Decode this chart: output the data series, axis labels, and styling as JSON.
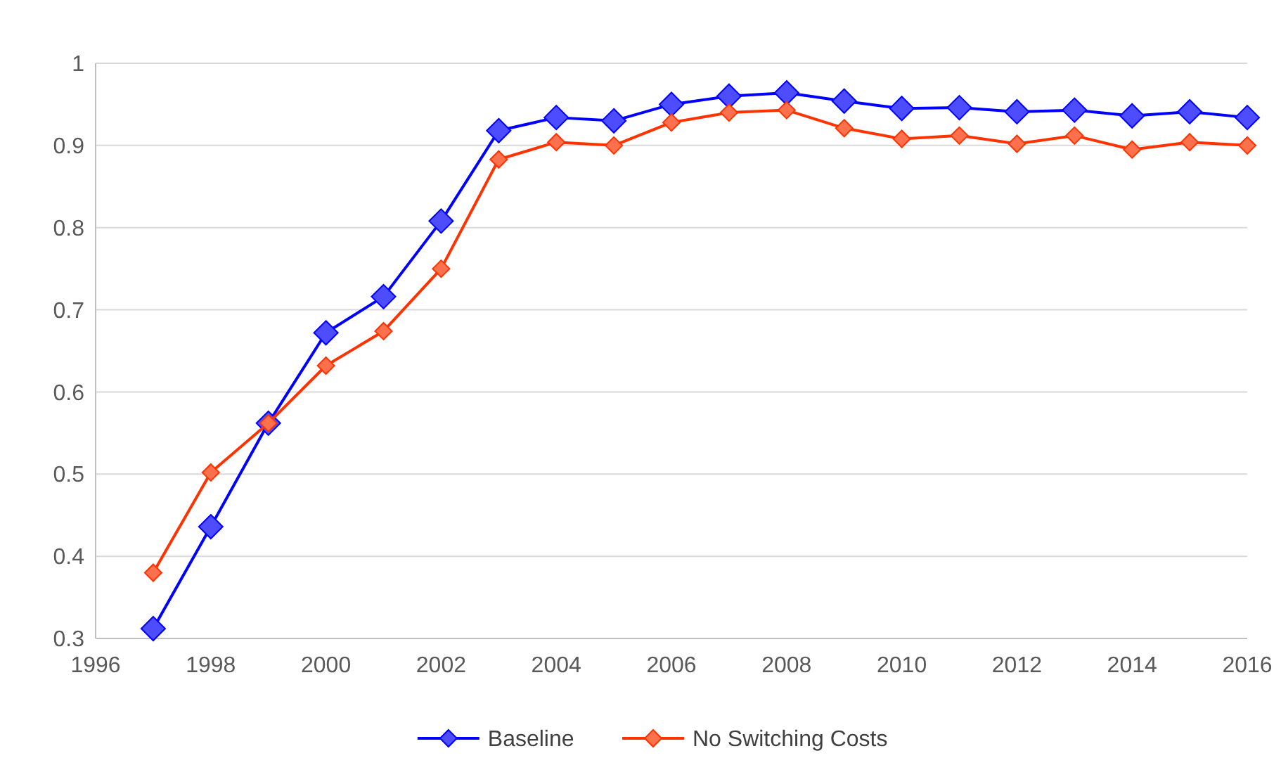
{
  "chart_data": {
    "type": "line",
    "x": [
      1997,
      1998,
      1999,
      2000,
      2001,
      2002,
      2003,
      2004,
      2005,
      2006,
      2007,
      2008,
      2009,
      2010,
      2011,
      2012,
      2013,
      2014,
      2015,
      2016
    ],
    "series": [
      {
        "name": "Baseline",
        "color": "#0000ff",
        "values": [
          0.312,
          0.436,
          0.562,
          0.672,
          0.716,
          0.808,
          0.918,
          0.934,
          0.93,
          0.95,
          0.96,
          0.964,
          0.954,
          0.945,
          0.946,
          0.941,
          0.943,
          0.936,
          0.941,
          0.934
        ]
      },
      {
        "name": "No Switching Costs",
        "color": "#ff3300",
        "values": [
          0.38,
          0.502,
          0.562,
          0.632,
          0.674,
          0.75,
          0.883,
          0.904,
          0.9,
          0.928,
          0.94,
          0.943,
          0.921,
          0.908,
          0.912,
          0.902,
          0.912,
          0.895,
          0.904,
          0.9
        ]
      }
    ],
    "xlim": [
      1996,
      2016
    ],
    "xticks": [
      1996,
      1998,
      2000,
      2002,
      2004,
      2006,
      2008,
      2010,
      2012,
      2014,
      2016
    ],
    "ylim": [
      0.3,
      1
    ],
    "yticks": [
      {
        "value": 0.3,
        "label": "0.3"
      },
      {
        "value": 0.4,
        "label": "0.4"
      },
      {
        "value": 0.5,
        "label": "0.5"
      },
      {
        "value": 0.6,
        "label": "0.6"
      },
      {
        "value": 0.7,
        "label": "0.7"
      },
      {
        "value": 0.8,
        "label": "0.8"
      },
      {
        "value": 0.9,
        "label": "0.9"
      },
      {
        "value": 1,
        "label": "1"
      }
    ],
    "grid": "y",
    "legend": "bottom",
    "marker": "diamond",
    "line_style": "solid"
  }
}
